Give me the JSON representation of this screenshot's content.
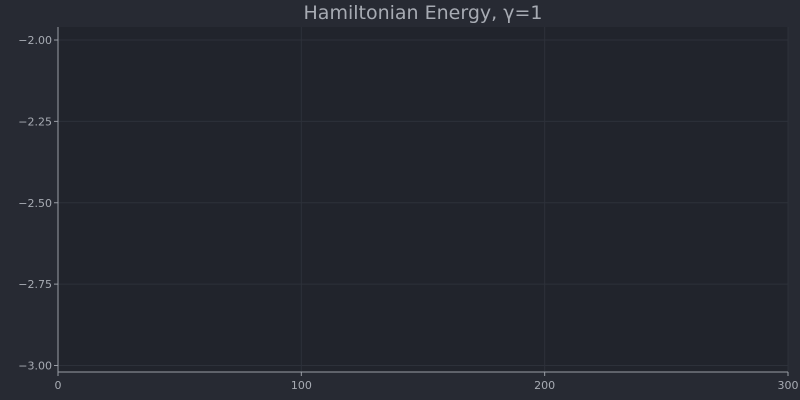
{
  "chart_data": {
    "type": "line",
    "title": "Hamiltonian Energy, γ=1",
    "xlabel": "",
    "ylabel": "",
    "xlim": [
      0,
      300
    ],
    "ylim": [
      -3.02,
      -1.96
    ],
    "x_ticks": [
      {
        "value": 0,
        "label": "0"
      },
      {
        "value": 100,
        "label": "100"
      },
      {
        "value": 200,
        "label": "200"
      },
      {
        "value": 300,
        "label": "300"
      }
    ],
    "y_ticks": [
      {
        "value": -2.0,
        "label": "−2.00"
      },
      {
        "value": -2.25,
        "label": "−2.25"
      },
      {
        "value": -2.5,
        "label": "−2.50"
      },
      {
        "value": -2.75,
        "label": "−2.75"
      },
      {
        "value": -3.0,
        "label": "−3.00"
      }
    ],
    "series": [],
    "grid": true,
    "legend": "none"
  },
  "colors": {
    "background": "#272a33",
    "plot_background": "#21242c",
    "grid": "#2d313a",
    "axis": "#9a9ea6",
    "text": "#a7abb3"
  }
}
